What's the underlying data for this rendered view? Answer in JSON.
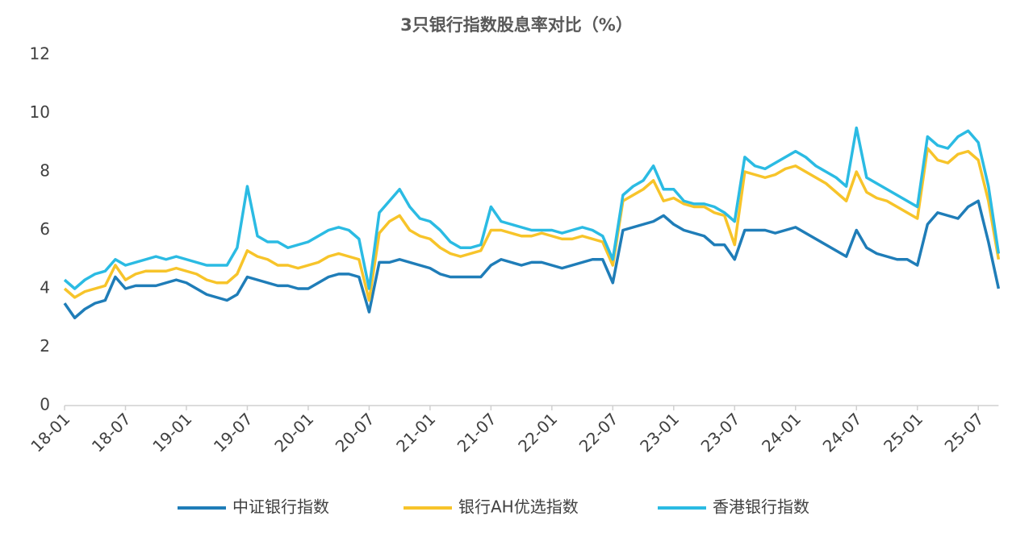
{
  "chart_data": {
    "type": "line",
    "title": "3只银行指数股息率对比（%）",
    "x": [
      "18-01",
      "18-02",
      "18-03",
      "18-04",
      "18-05",
      "18-06",
      "18-07",
      "18-08",
      "18-09",
      "18-10",
      "18-11",
      "18-12",
      "19-01",
      "19-02",
      "19-03",
      "19-04",
      "19-05",
      "19-06",
      "19-07",
      "19-08",
      "19-09",
      "19-10",
      "19-11",
      "19-12",
      "20-01",
      "20-02",
      "20-03",
      "20-04",
      "20-05",
      "20-06",
      "20-07",
      "20-08",
      "20-09",
      "20-10",
      "20-11",
      "20-12",
      "21-01",
      "21-02",
      "21-03",
      "21-04",
      "21-05",
      "21-06",
      "21-07",
      "21-08",
      "21-09",
      "21-10",
      "21-11",
      "21-12",
      "22-01",
      "22-02",
      "22-03",
      "22-04",
      "22-05",
      "22-06",
      "22-07",
      "22-08",
      "22-09",
      "22-10",
      "22-11",
      "22-12",
      "23-01",
      "23-02",
      "23-03",
      "23-04",
      "23-05",
      "23-06",
      "23-07",
      "23-08",
      "23-09",
      "23-10",
      "23-11",
      "23-12",
      "24-01",
      "24-02",
      "24-03",
      "24-04",
      "24-05",
      "24-06",
      "24-07",
      "24-08",
      "24-09",
      "24-10",
      "24-11",
      "24-12",
      "25-01",
      "25-02",
      "25-03",
      "25-04",
      "25-05",
      "25-06",
      "25-07",
      "25-08",
      "25-09"
    ],
    "xticks": [
      "18-01",
      "18-07",
      "19-01",
      "19-07",
      "20-01",
      "20-07",
      "21-01",
      "21-07",
      "22-01",
      "22-07",
      "23-01",
      "23-07",
      "24-01",
      "24-07",
      "25-01",
      "25-07"
    ],
    "series": [
      {
        "name": "中证银行指数",
        "color": "#1f7db8",
        "values": [
          3.5,
          3.0,
          3.3,
          3.5,
          3.6,
          4.4,
          4.0,
          4.1,
          4.1,
          4.1,
          4.2,
          4.3,
          4.2,
          4.0,
          3.8,
          3.7,
          3.6,
          3.8,
          4.4,
          4.3,
          4.2,
          4.1,
          4.1,
          4.0,
          4.0,
          4.2,
          4.4,
          4.5,
          4.5,
          4.4,
          3.2,
          4.9,
          4.9,
          5.0,
          4.9,
          4.8,
          4.7,
          4.5,
          4.4,
          4.4,
          4.4,
          4.4,
          4.8,
          5.0,
          4.9,
          4.8,
          4.9,
          4.9,
          4.8,
          4.7,
          4.8,
          4.9,
          5.0,
          5.0,
          4.2,
          6.0,
          6.1,
          6.2,
          6.3,
          6.5,
          6.2,
          6.0,
          5.9,
          5.8,
          5.5,
          5.5,
          5.0,
          6.0,
          6.0,
          6.0,
          5.9,
          6.0,
          6.1,
          5.9,
          5.7,
          5.5,
          5.3,
          5.1,
          6.0,
          5.4,
          5.2,
          5.1,
          5.0,
          5.0,
          4.8,
          6.2,
          6.6,
          6.5,
          6.4,
          6.8,
          7.0,
          5.6,
          4.0
        ]
      },
      {
        "name": "银行AH优选指数",
        "color": "#f7c42a",
        "values": [
          4.0,
          3.7,
          3.9,
          4.0,
          4.1,
          4.8,
          4.3,
          4.5,
          4.6,
          4.6,
          4.6,
          4.7,
          4.6,
          4.5,
          4.3,
          4.2,
          4.2,
          4.5,
          5.3,
          5.1,
          5.0,
          4.8,
          4.8,
          4.7,
          4.8,
          4.9,
          5.1,
          5.2,
          5.1,
          5.0,
          3.6,
          5.9,
          6.3,
          6.5,
          6.0,
          5.8,
          5.7,
          5.4,
          5.2,
          5.1,
          5.2,
          5.3,
          6.0,
          6.0,
          5.9,
          5.8,
          5.8,
          5.9,
          5.8,
          5.7,
          5.7,
          5.8,
          5.7,
          5.6,
          4.8,
          7.0,
          7.2,
          7.4,
          7.7,
          7.0,
          7.1,
          6.9,
          6.8,
          6.8,
          6.6,
          6.5,
          5.5,
          8.0,
          7.9,
          7.8,
          7.9,
          8.1,
          8.2,
          8.0,
          7.8,
          7.6,
          7.3,
          7.0,
          8.0,
          7.3,
          7.1,
          7.0,
          6.8,
          6.6,
          6.4,
          8.8,
          8.4,
          8.3,
          8.6,
          8.7,
          8.4,
          7.0,
          5.0
        ]
      },
      {
        "name": "香港银行指数",
        "color": "#2bbbe3",
        "values": [
          4.3,
          4.0,
          4.3,
          4.5,
          4.6,
          5.0,
          4.8,
          4.9,
          5.0,
          5.1,
          5.0,
          5.1,
          5.0,
          4.9,
          4.8,
          4.8,
          4.8,
          5.4,
          7.5,
          5.8,
          5.6,
          5.6,
          5.4,
          5.5,
          5.6,
          5.8,
          6.0,
          6.1,
          6.0,
          5.7,
          4.0,
          6.6,
          7.0,
          7.4,
          6.8,
          6.4,
          6.3,
          6.0,
          5.6,
          5.4,
          5.4,
          5.5,
          6.8,
          6.3,
          6.2,
          6.1,
          6.0,
          6.0,
          6.0,
          5.9,
          6.0,
          6.1,
          6.0,
          5.8,
          5.0,
          7.2,
          7.5,
          7.7,
          8.2,
          7.4,
          7.4,
          7.0,
          6.9,
          6.9,
          6.8,
          6.6,
          6.3,
          8.5,
          8.2,
          8.1,
          8.3,
          8.5,
          8.7,
          8.5,
          8.2,
          8.0,
          7.8,
          7.5,
          9.5,
          7.8,
          7.6,
          7.4,
          7.2,
          7.0,
          6.8,
          9.2,
          8.9,
          8.8,
          9.2,
          9.4,
          9.0,
          7.5,
          5.2
        ]
      }
    ],
    "ylim": [
      0,
      12
    ],
    "yticks": [
      0,
      2,
      4,
      6,
      8,
      10,
      12
    ],
    "legend": "bottom"
  }
}
